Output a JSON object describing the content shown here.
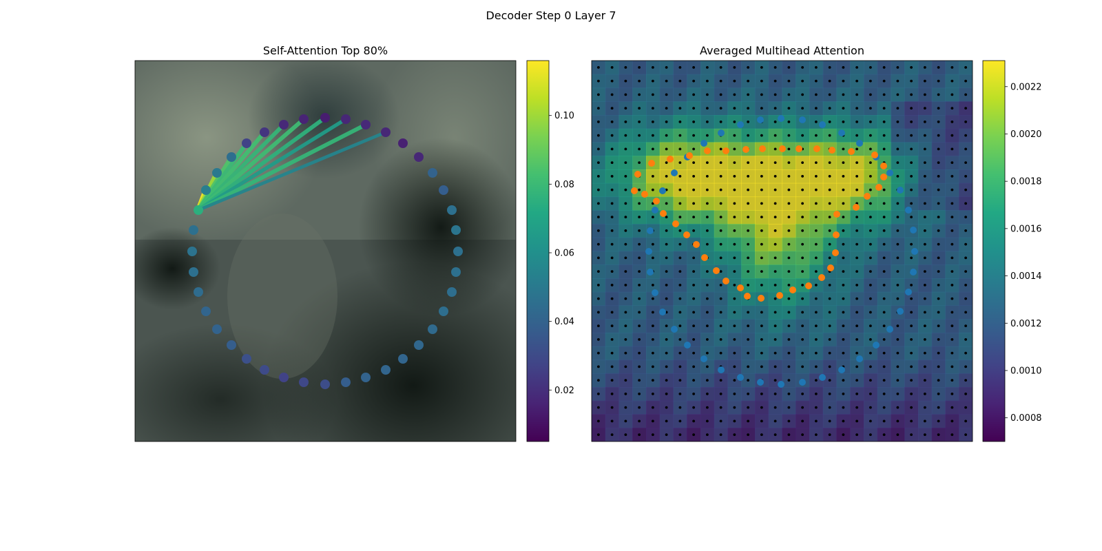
{
  "figure": {
    "title": "Decoder Step 0 Layer 7"
  },
  "chart_data": [
    {
      "type": "scatter",
      "title": "Self-Attention Top 80%",
      "description_points": "contour points on image, colored by attention weight",
      "colormap": "viridis",
      "colorbar": {
        "min": 0.005,
        "max": 0.116,
        "ticks": [
          "0.02",
          "0.04",
          "0.06",
          "0.08",
          "0.10"
        ],
        "tick_values": [
          0.02,
          0.04,
          0.06,
          0.08,
          0.1
        ]
      },
      "query_point_index": 0,
      "points": [
        {
          "x": 288,
          "y": 305,
          "w": 0.075
        },
        {
          "x": 299,
          "y": 276,
          "w": 0.052
        },
        {
          "x": 315,
          "y": 251,
          "w": 0.05
        },
        {
          "x": 336,
          "y": 228,
          "w": 0.045
        },
        {
          "x": 358,
          "y": 208,
          "w": 0.027
        },
        {
          "x": 384,
          "y": 192,
          "w": 0.022
        },
        {
          "x": 412,
          "y": 181,
          "w": 0.018
        },
        {
          "x": 441,
          "y": 173,
          "w": 0.016
        },
        {
          "x": 472,
          "y": 171,
          "w": 0.014
        },
        {
          "x": 502,
          "y": 173,
          "w": 0.017
        },
        {
          "x": 531,
          "y": 181,
          "w": 0.018
        },
        {
          "x": 560,
          "y": 192,
          "w": 0.017
        },
        {
          "x": 585,
          "y": 208,
          "w": 0.015
        },
        {
          "x": 608,
          "y": 228,
          "w": 0.017
        },
        {
          "x": 628,
          "y": 251,
          "w": 0.04
        },
        {
          "x": 644,
          "y": 276,
          "w": 0.038
        },
        {
          "x": 656,
          "y": 305,
          "w": 0.046
        },
        {
          "x": 662,
          "y": 334,
          "w": 0.048
        },
        {
          "x": 665,
          "y": 365,
          "w": 0.046
        },
        {
          "x": 662,
          "y": 395,
          "w": 0.046
        },
        {
          "x": 656,
          "y": 424,
          "w": 0.045
        },
        {
          "x": 644,
          "y": 452,
          "w": 0.045
        },
        {
          "x": 628,
          "y": 478,
          "w": 0.043
        },
        {
          "x": 608,
          "y": 501,
          "w": 0.042
        },
        {
          "x": 585,
          "y": 521,
          "w": 0.041
        },
        {
          "x": 560,
          "y": 537,
          "w": 0.041
        },
        {
          "x": 531,
          "y": 548,
          "w": 0.04
        },
        {
          "x": 502,
          "y": 555,
          "w": 0.038
        },
        {
          "x": 472,
          "y": 558,
          "w": 0.031
        },
        {
          "x": 441,
          "y": 555,
          "w": 0.029
        },
        {
          "x": 412,
          "y": 548,
          "w": 0.027
        },
        {
          "x": 384,
          "y": 537,
          "w": 0.03
        },
        {
          "x": 358,
          "y": 521,
          "w": 0.032
        },
        {
          "x": 336,
          "y": 501,
          "w": 0.038
        },
        {
          "x": 315,
          "y": 478,
          "w": 0.04
        },
        {
          "x": 299,
          "y": 452,
          "w": 0.041
        },
        {
          "x": 288,
          "y": 424,
          "w": 0.044
        },
        {
          "x": 281,
          "y": 395,
          "w": 0.046
        },
        {
          "x": 279,
          "y": 365,
          "w": 0.047
        },
        {
          "x": 281,
          "y": 334,
          "w": 0.046
        }
      ],
      "attention_lines": [
        {
          "to": 1,
          "w": 0.115
        },
        {
          "to": 2,
          "w": 0.1
        },
        {
          "to": 3,
          "w": 0.085
        },
        {
          "to": 4,
          "w": 0.08
        },
        {
          "to": 5,
          "w": 0.082
        },
        {
          "to": 6,
          "w": 0.078
        },
        {
          "to": 7,
          "w": 0.081
        },
        {
          "to": 8,
          "w": 0.076
        },
        {
          "to": 9,
          "w": 0.066
        },
        {
          "to": 10,
          "w": 0.078
        },
        {
          "to": 11,
          "w": 0.055
        }
      ]
    },
    {
      "type": "heatmap",
      "title": "Averaged Multihead Attention",
      "colormap": "viridis",
      "colorbar": {
        "min": 0.0007,
        "max": 0.00231,
        "ticks": [
          "0.0008",
          "0.0010",
          "0.0012",
          "0.0014",
          "0.0016",
          "0.0018",
          "0.0020",
          "0.0022"
        ],
        "tick_values": [
          0.0008,
          0.001,
          0.0012,
          0.0014,
          0.0016,
          0.0018,
          0.002,
          0.0022
        ]
      },
      "grid": {
        "rows": 28,
        "cols": 28
      },
      "hotspots": [
        {
          "cx": 0.43,
          "cy": 0.31,
          "sx": 0.22,
          "sy": 0.09,
          "amp": 1.0
        },
        {
          "cx": 0.49,
          "cy": 0.48,
          "sx": 0.1,
          "sy": 0.12,
          "amp": 0.7
        },
        {
          "cx": 0.22,
          "cy": 0.3,
          "sx": 0.1,
          "sy": 0.08,
          "amp": 0.5
        },
        {
          "cx": 0.7,
          "cy": 0.3,
          "sx": 0.1,
          "sy": 0.08,
          "amp": 0.55
        }
      ],
      "series": [
        {
          "name": "contour",
          "color": "#1f77b4",
          "points": [
            [
              1022,
              208
            ],
            [
              1047,
              193
            ],
            [
              1075,
              181
            ],
            [
              1104,
              174
            ],
            [
              1134,
              172
            ],
            [
              1165,
              174
            ],
            [
              1194,
              181
            ],
            [
              1222,
              193
            ],
            [
              1248,
              208
            ],
            [
              1272,
              228
            ],
            [
              1292,
              251
            ],
            [
              1307,
              276
            ],
            [
              1319,
              305
            ],
            [
              1326,
              334
            ],
            [
              1328,
              365
            ],
            [
              1326,
              395
            ],
            [
              1319,
              424
            ],
            [
              1307,
              452
            ],
            [
              1292,
              478
            ],
            [
              1272,
              501
            ],
            [
              1248,
              521
            ],
            [
              1222,
              537
            ],
            [
              1194,
              548
            ],
            [
              1165,
              555
            ],
            [
              1134,
              558
            ],
            [
              1104,
              555
            ],
            [
              1075,
              548
            ],
            [
              1047,
              537
            ],
            [
              1022,
              521
            ],
            [
              998,
              501
            ],
            [
              979,
              478
            ],
            [
              962,
              453
            ],
            [
              951,
              425
            ],
            [
              944,
              395
            ],
            [
              942,
              365
            ],
            [
              944,
              335
            ],
            [
              951,
              305
            ],
            [
              962,
              277
            ],
            [
              979,
              251
            ],
            [
              998,
              228
            ]
          ]
        },
        {
          "name": "predicted",
          "color": "#ff7f0e",
          "points": [
            [
              921,
              277
            ],
            [
              936,
              282
            ],
            [
              926,
              253
            ],
            [
              953,
              292
            ],
            [
              946,
              237
            ],
            [
              963,
              310
            ],
            [
              973,
              231
            ],
            [
              981,
              325
            ],
            [
              1001,
              226
            ],
            [
              997,
              341
            ],
            [
              1027,
              219
            ],
            [
              1011,
              355
            ],
            [
              1054,
              219
            ],
            [
              1023,
              374
            ],
            [
              1083,
              217
            ],
            [
              1040,
              393
            ],
            [
              1107,
              216
            ],
            [
              1054,
              408
            ],
            [
              1136,
              216
            ],
            [
              1075,
              418
            ],
            [
              1160,
              216
            ],
            [
              1085,
              430
            ],
            [
              1186,
              216
            ],
            [
              1105,
              433
            ],
            [
              1208,
              218
            ],
            [
              1132,
              429
            ],
            [
              1236,
              220
            ],
            [
              1151,
              421
            ],
            [
              1270,
              225
            ],
            [
              1174,
              415
            ],
            [
              1283,
              241
            ],
            [
              1193,
              403
            ],
            [
              1283,
              257
            ],
            [
              1206,
              389
            ],
            [
              1276,
              272
            ],
            [
              1213,
              367
            ],
            [
              1259,
              285
            ],
            [
              1214,
              341
            ],
            [
              1243,
              301
            ],
            [
              1215,
              311
            ]
          ]
        },
        {
          "name": "reference grid",
          "color": "#000000",
          "points": []
        }
      ]
    }
  ]
}
